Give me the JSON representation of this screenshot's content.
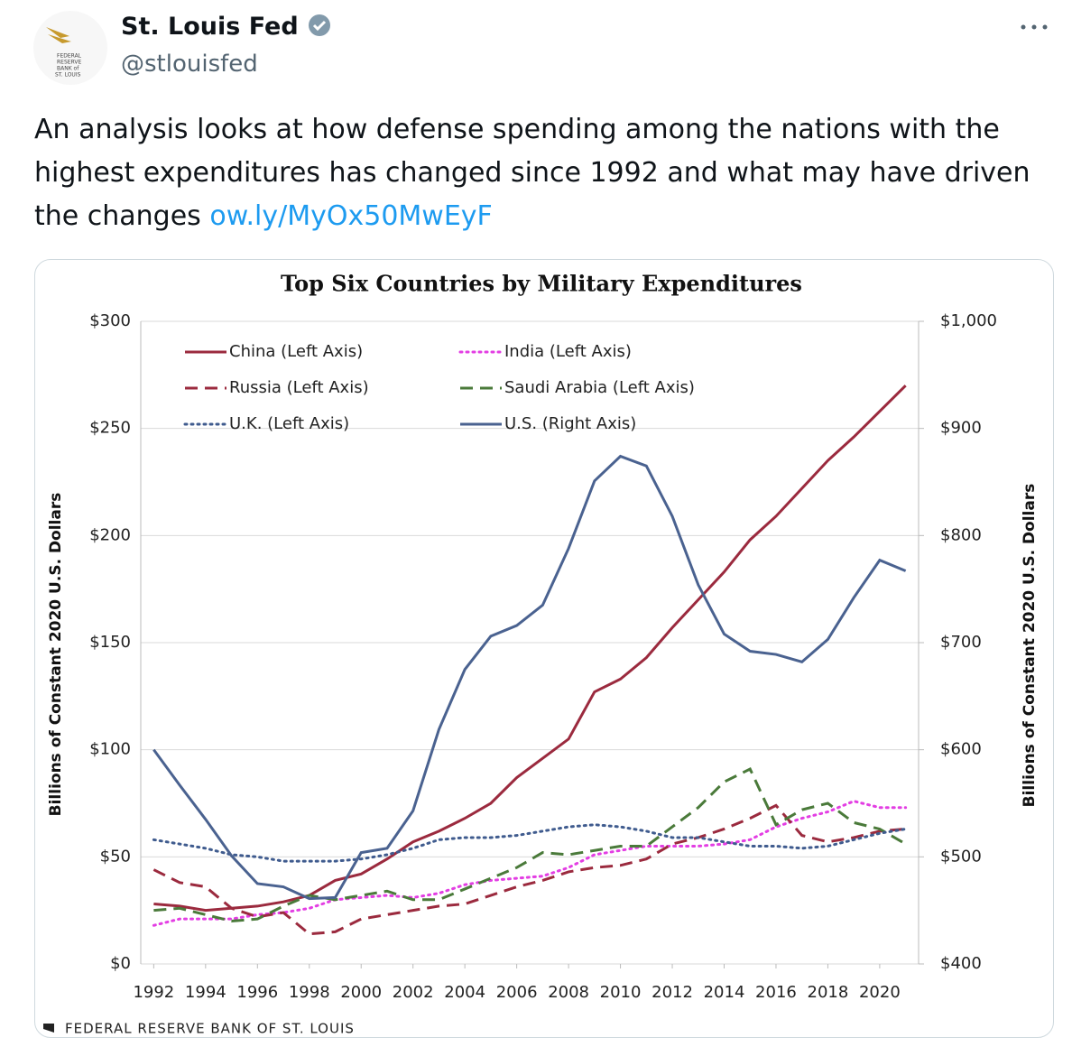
{
  "tweet": {
    "name": "St. Louis Fed",
    "handle": "@stlouisfed",
    "logo_text": [
      "FEDERAL",
      "RESERVE",
      "BANK of",
      "ST. LOUIS"
    ],
    "text": "An analysis looks at how defense spending among the nations with the highest expenditures has changed since 1992 and what may have driven the changes",
    "link": "ow.ly/MyOx50MwEyF"
  },
  "chart_data": {
    "type": "line",
    "title": "Top Six Countries by Military Expenditures",
    "ylabel": "Billions of Constant 2020 U.S. Dollars",
    "y2label": "Billions of Constant 2020 U.S. Dollars",
    "footer": "FEDERAL RESERVE BANK OF ST. LOUIS",
    "x": [
      1992,
      1993,
      1994,
      1995,
      1996,
      1997,
      1998,
      1999,
      2000,
      2001,
      2002,
      2003,
      2004,
      2005,
      2006,
      2007,
      2008,
      2009,
      2010,
      2011,
      2012,
      2013,
      2014,
      2015,
      2016,
      2017,
      2018,
      2019,
      2020,
      2021
    ],
    "xlim": [
      1991.5,
      2021.5
    ],
    "xticks": [
      1992,
      1994,
      1996,
      1998,
      2000,
      2002,
      2004,
      2006,
      2008,
      2010,
      2012,
      2014,
      2016,
      2018,
      2020
    ],
    "ylim": [
      0,
      300
    ],
    "yticks": [
      {
        "value": 0,
        "label": "$0"
      },
      {
        "value": 50,
        "label": "$50"
      },
      {
        "value": 100,
        "label": "$100"
      },
      {
        "value": 150,
        "label": "$150"
      },
      {
        "value": 200,
        "label": "$200"
      },
      {
        "value": 250,
        "label": "$250"
      },
      {
        "value": 300,
        "label": "$300"
      }
    ],
    "y2lim": [
      400,
      1000
    ],
    "y2ticks": [
      {
        "value": 400,
        "label": "$400"
      },
      {
        "value": 500,
        "label": "$500"
      },
      {
        "value": 600,
        "label": "$600"
      },
      {
        "value": 700,
        "label": "$700"
      },
      {
        "value": 800,
        "label": "$800"
      },
      {
        "value": 900,
        "label": "$900"
      },
      {
        "value": 1000,
        "label": "$1,000"
      }
    ],
    "grid": true,
    "series": [
      {
        "name": "China (Left Axis)",
        "color": "#9b2a3e",
        "style": "solid",
        "values": [
          28,
          27,
          25,
          26,
          27,
          29,
          32,
          39,
          42,
          49,
          57,
          62,
          68,
          75,
          87,
          96,
          105,
          127,
          133,
          143,
          157,
          170,
          183,
          198,
          209,
          222,
          235,
          246,
          258,
          270
        ]
      },
      {
        "name": "India (Left Axis)",
        "color": "#e33ee3",
        "style": "dotted",
        "values": [
          18,
          21,
          21,
          21,
          23,
          24,
          26,
          30,
          31,
          32,
          31,
          33,
          37,
          39,
          40,
          41,
          45,
          51,
          53,
          55,
          55,
          55,
          56,
          58,
          64,
          68,
          71,
          76,
          73,
          73
        ]
      },
      {
        "name": "Russia (Left Axis)",
        "color": "#9b2a3e",
        "style": "dashed",
        "values": [
          44,
          38,
          36,
          26,
          22,
          24,
          14,
          15,
          21,
          23,
          25,
          27,
          28,
          32,
          36,
          39,
          43,
          45,
          46,
          49,
          56,
          59,
          63,
          68,
          74,
          60,
          57,
          59,
          62,
          63
        ]
      },
      {
        "name": "Saudi Arabia (Left Axis)",
        "color": "#4a7a3a",
        "style": "dashed",
        "values": [
          25,
          26,
          23,
          20,
          21,
          27,
          32,
          30,
          32,
          34,
          30,
          30,
          35,
          40,
          45,
          52,
          51,
          53,
          55,
          55,
          64,
          73,
          85,
          91,
          65,
          72,
          75,
          66,
          63,
          56
        ]
      },
      {
        "name": "U.K. (Left Axis)",
        "color": "#3f5b8e",
        "style": "dotted",
        "values": [
          58,
          56,
          54,
          51,
          50,
          48,
          48,
          48,
          49,
          51,
          54,
          58,
          59,
          59,
          60,
          62,
          64,
          65,
          64,
          62,
          59,
          59,
          57,
          55,
          55,
          54,
          55,
          58,
          61,
          63
        ]
      },
      {
        "name": "U.S. (Right Axis)",
        "color": "#4a6290",
        "style": "solid",
        "axis": "y2",
        "values": [
          600,
          567,
          535,
          501,
          475,
          472,
          461,
          462,
          504,
          508,
          543,
          619,
          675,
          706,
          716,
          735,
          788,
          851,
          874,
          865,
          818,
          754,
          708,
          692,
          689,
          682,
          703,
          742,
          777,
          767
        ]
      }
    ]
  }
}
